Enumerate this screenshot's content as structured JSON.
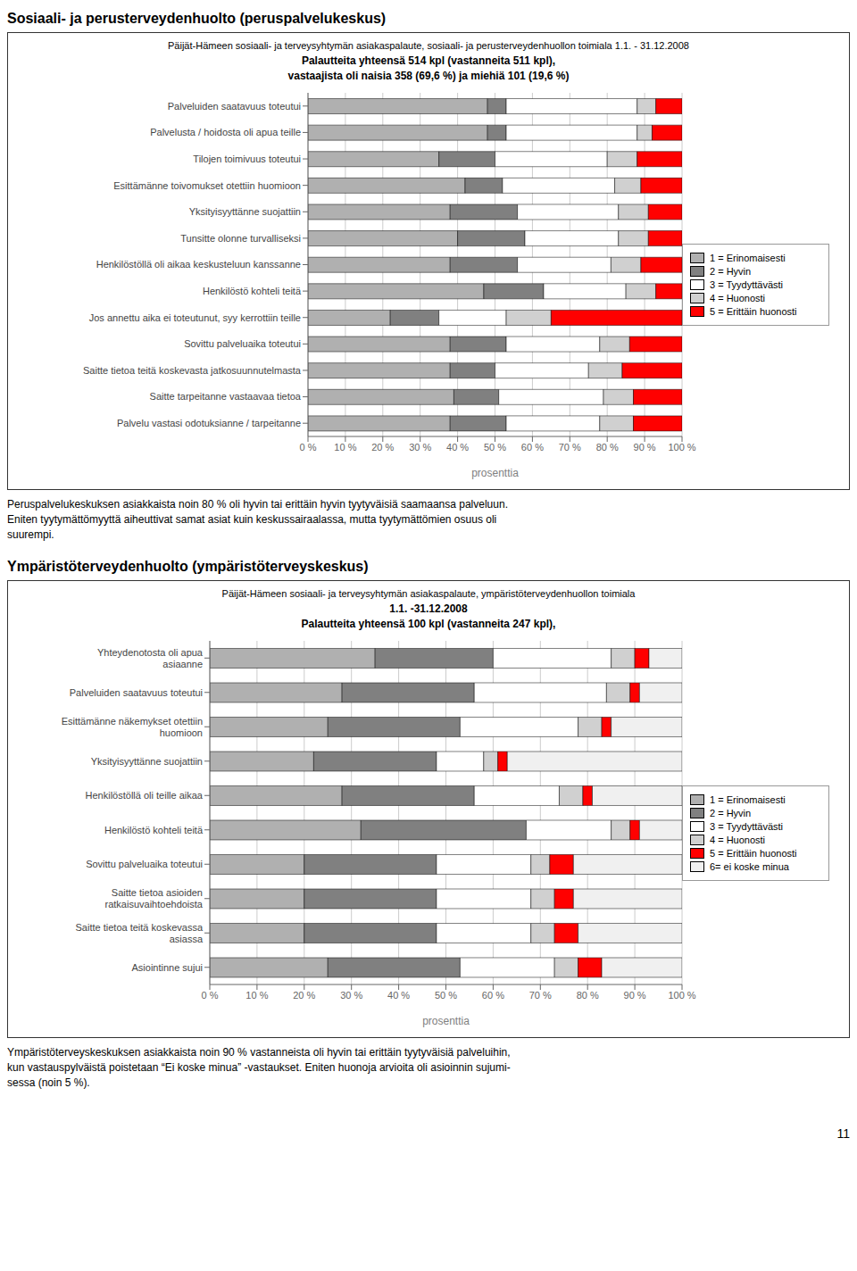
{
  "chart_data": [
    {
      "type": "bar",
      "title": "Sosiaali- ja perusterveydenhuolto (peruspalvelukeskus)",
      "subtitle": [
        "Päijät-Hämeen sosiaali- ja terveysyhtymän asiakaspalaute, sosiaali- ja perusterveydenhuollon toimiala 1.1. - 31.12.2008",
        "Palautteita yhteensä 514 kpl (vastanneita 511 kpl),",
        "vastaajista oli naisia 358 (69,6 %) ja miehiä 101 (19,6 %)"
      ],
      "orientation": "horizontal",
      "stacked": true,
      "grid": true,
      "legend": "right",
      "xlabel": "prosenttia",
      "xlim": [
        0,
        100
      ],
      "xticks": [
        {
          "value": 0,
          "label": "0 %"
        },
        {
          "value": 10,
          "label": "10 %"
        },
        {
          "value": 20,
          "label": "20 %"
        },
        {
          "value": 30,
          "label": "30 %"
        },
        {
          "value": 40,
          "label": "40 %"
        },
        {
          "value": 50,
          "label": "50 %"
        },
        {
          "value": 60,
          "label": "60 %"
        },
        {
          "value": 70,
          "label": "70 %"
        },
        {
          "value": 80,
          "label": "80 %"
        },
        {
          "value": 90,
          "label": "90 %"
        },
        {
          "value": 100,
          "label": "100 %"
        }
      ],
      "categories": [
        "Palveluiden saatavuus toteutui",
        "Palvelusta / hoidosta oli apua teille",
        "Tilojen toimivuus toteutui",
        "Esittämänne toivomukset otettiin huomioon",
        "Yksityisyyttänne suojattiin",
        "Tunsitte olonne turvalliseksi",
        "Henkilöstöllä oli aikaa keskusteluun kanssanne",
        "Henkilöstö kohteli teitä",
        "Jos annettu aika ei toteutunut, syy kerrottiin teille",
        "Sovittu palveluaika toteutui",
        "Saitte tietoa teitä koskevasta jatkosuunnutelmasta",
        "Saitte tarpeitanne vastaavaa tietoa",
        "Palvelu vastasi odotuksianne / tarpeitanne"
      ],
      "series": [
        {
          "name": "1 = Erinomaisesti",
          "color": "#b0b0b0",
          "values": [
            48,
            48,
            35,
            42,
            38,
            40,
            38,
            47,
            22,
            38,
            38,
            39,
            38
          ]
        },
        {
          "name": "2 = Hyvin",
          "color": "#808080",
          "values": [
            5,
            5,
            15,
            10,
            18,
            18,
            18,
            16,
            13,
            15,
            12,
            12,
            15
          ]
        },
        {
          "name": "3 = Tyydyttävästi",
          "color": "#ffffff",
          "values": [
            35,
            35,
            30,
            30,
            27,
            25,
            25,
            22,
            18,
            25,
            25,
            28,
            25
          ]
        },
        {
          "name": "4 = Huonosti",
          "color": "#d0d0d0",
          "values": [
            5,
            4,
            8,
            7,
            8,
            8,
            8,
            8,
            12,
            8,
            9,
            8,
            9
          ]
        },
        {
          "name": "5 = Erittäin huonosti",
          "color": "#ff0000",
          "values": [
            7,
            8,
            12,
            11,
            9,
            9,
            11,
            7,
            35,
            14,
            16,
            13,
            13
          ]
        }
      ],
      "annotations": [
        "Peruspalvelukeskuksen asiakkaista noin 80 % oli hyvin tai erittäin hyvin tyytyväisiä saamaansa palveluun.",
        "Eniten tyytymättömyyttä aiheuttivat samat asiat kuin keskussairaalassa, mutta tyytymättömien osuus oli",
        "suurempi."
      ]
    },
    {
      "type": "bar",
      "title": "Ympäristöterveydenhuolto (ympäristöterveyskeskus)",
      "subtitle": [
        "Päijät-Hämeen sosiaali- ja terveysyhtymän asiakaspalaute, ympäristöterveydenhuollon toimiala",
        "1.1. -31.12.2008",
        "Palautteita yhteensä 100 kpl (vastanneita 247 kpl),"
      ],
      "orientation": "horizontal",
      "stacked": true,
      "grid": true,
      "legend": "right",
      "xlabel": "prosenttia",
      "xlim": [
        0,
        100
      ],
      "xticks": [
        {
          "value": 0,
          "label": "0 %"
        },
        {
          "value": 10,
          "label": "10 %"
        },
        {
          "value": 20,
          "label": "20 %"
        },
        {
          "value": 30,
          "label": "30 %"
        },
        {
          "value": 40,
          "label": "40 %"
        },
        {
          "value": 50,
          "label": "50 %"
        },
        {
          "value": 60,
          "label": "60 %"
        },
        {
          "value": 70,
          "label": "70 %"
        },
        {
          "value": 80,
          "label": "80 %"
        },
        {
          "value": 90,
          "label": "90 %"
        },
        {
          "value": 100,
          "label": "100 %"
        }
      ],
      "categories": [
        "Yhteydenotosta oli apua\nasiaanne",
        "Palveluiden saatavuus toteutui",
        "Esittämänne näkemykset otettiin\nhuomioon",
        "Yksityisyyttänne suojattiin",
        "Henkilöstöllä oli teille aikaa",
        "Henkilöstö kohteli teitä",
        "Sovittu palveluaika toteutui",
        "Saitte tietoa asioiden\nratkaisuvaihtoehdoista",
        "Saitte tietoa teitä koskevassa\nasiassa",
        "Asiointinne sujui"
      ],
      "series": [
        {
          "name": "1 = Erinomaisesti",
          "color": "#b0b0b0",
          "values": [
            35,
            28,
            25,
            22,
            28,
            32,
            20,
            20,
            20,
            25
          ]
        },
        {
          "name": "2 = Hyvin",
          "color": "#808080",
          "values": [
            25,
            28,
            28,
            26,
            28,
            35,
            28,
            28,
            28,
            28
          ]
        },
        {
          "name": "3 = Tyydyttävästi",
          "color": "#ffffff",
          "values": [
            25,
            28,
            25,
            10,
            18,
            18,
            20,
            20,
            20,
            20
          ]
        },
        {
          "name": "4 = Huonosti",
          "color": "#d0d0d0",
          "values": [
            5,
            5,
            5,
            3,
            5,
            4,
            4,
            5,
            5,
            5
          ]
        },
        {
          "name": "5 = Erittäin huonosti",
          "color": "#ff0000",
          "values": [
            3,
            2,
            2,
            2,
            2,
            2,
            5,
            4,
            5,
            5
          ]
        },
        {
          "name": "6= ei koske minua",
          "color": "#f0f0f0",
          "values": [
            7,
            9,
            15,
            37,
            19,
            9,
            23,
            23,
            22,
            17
          ]
        }
      ],
      "annotations": [
        "Ympäristöterveyskeskuksen asiakkaista noin 90 % vastanneista oli hyvin tai erittäin tyytyväisiä palveluihin,",
        "kun vastauspylväistä poistetaan “Ei koske minua” -vastaukset. Eniten huonoja arvioita oli asioinnin sujumi-",
        "sessa (noin 5 %)."
      ],
      "footer": "11"
    }
  ]
}
